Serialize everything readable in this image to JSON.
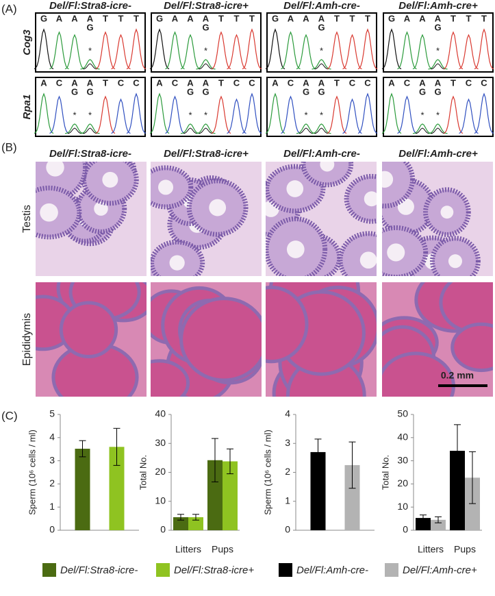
{
  "panel_a": {
    "label": "(A)",
    "columns": [
      "Del/Fl:Stra8-icre-",
      "Del/Fl:Stra8-icre+",
      "Del/Fl:Amh-cre-",
      "Del/Fl:Amh-cre+"
    ],
    "rows": [
      {
        "label": "Cog3",
        "bases": [
          "G",
          "A",
          "A",
          "A",
          "T",
          "T",
          "T"
        ],
        "variant_bases": [
          null,
          null,
          null,
          "G",
          null,
          null,
          null
        ],
        "marker": "*"
      },
      {
        "label": "Rpa1",
        "bases": [
          "A",
          "C",
          "A",
          "A",
          "T",
          "C",
          "C"
        ],
        "variant_bases": [
          null,
          null,
          "G",
          "G",
          null,
          null,
          null
        ],
        "marker": "*"
      }
    ]
  },
  "panel_b": {
    "label": "(B)",
    "rows": [
      "Testis",
      "Epididymis"
    ],
    "scale_bar": "0.2 mm"
  },
  "panel_c_label": "(C)",
  "legend": [
    {
      "name": "Del/Fl:Stra8-icre-",
      "color": "#4b6b12"
    },
    {
      "name": "Del/Fl:Stra8-icre+",
      "color": "#8fc321"
    },
    {
      "name": "Del/Fl:Amh-cre-",
      "color": "#000000"
    },
    {
      "name": "Del/Fl:Amh-cre+",
      "color": "#b3b3b3"
    }
  ],
  "chart_data": [
    {
      "type": "bar",
      "y_label": "Sperm (10⁶ cells / ml)",
      "categories": [
        null
      ],
      "series": [
        {
          "color": "#4b6b12",
          "values": [
            3.52
          ],
          "errors": [
            0.35
          ]
        },
        {
          "color": "#8fc321",
          "values": [
            3.6
          ],
          "errors": [
            0.8
          ]
        }
      ],
      "ylim": [
        0,
        5
      ],
      "yticks": [
        0,
        1,
        2,
        3,
        4,
        5
      ]
    },
    {
      "type": "bar",
      "y_label": "Total No.",
      "categories": [
        "Litters",
        "Pups"
      ],
      "series": [
        {
          "color": "#4b6b12",
          "values": [
            4.5,
            24.2
          ],
          "errors": [
            1,
            7.5
          ]
        },
        {
          "color": "#8fc321",
          "values": [
            4.5,
            23.8
          ],
          "errors": [
            1,
            4.3
          ]
        }
      ],
      "ylim": [
        0,
        40
      ],
      "yticks": [
        0,
        10,
        20,
        30,
        40
      ]
    },
    {
      "type": "bar",
      "y_label": "Sperm (10⁶ cells / ml)",
      "categories": [
        null
      ],
      "series": [
        {
          "color": "#000000",
          "values": [
            2.7
          ],
          "errors": [
            0.45
          ]
        },
        {
          "color": "#b3b3b3",
          "values": [
            2.25
          ],
          "errors": [
            0.8
          ]
        }
      ],
      "ylim": [
        0,
        4
      ],
      "yticks": [
        0,
        1,
        2,
        3,
        4
      ]
    },
    {
      "type": "bar",
      "y_label": "Total No.",
      "categories": [
        "Litters",
        "Pups"
      ],
      "series": [
        {
          "color": "#000000",
          "values": [
            5.3,
            34.3
          ],
          "errors": [
            1.3,
            11.3
          ]
        },
        {
          "color": "#b3b3b3",
          "values": [
            4.5,
            22.7
          ],
          "errors": [
            1.3,
            11.2
          ]
        }
      ],
      "ylim": [
        0,
        50
      ],
      "yticks": [
        0,
        10,
        20,
        30,
        40,
        50
      ]
    }
  ]
}
